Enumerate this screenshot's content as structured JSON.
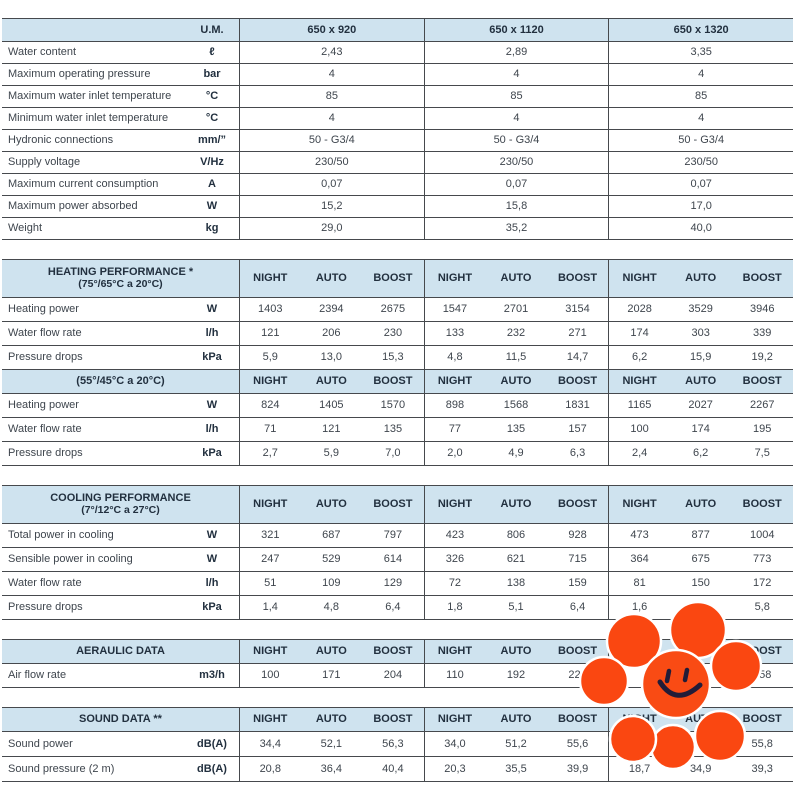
{
  "table": {
    "um_header": "U.M.",
    "models": [
      "650 x 920",
      "650 x 1120",
      "650 x 1320"
    ],
    "modes": [
      "NIGHT",
      "AUTO",
      "BOOST"
    ],
    "general_rows": [
      {
        "label": "Water content",
        "unit": "ℓ",
        "values": [
          "2,43",
          "2,89",
          "3,35"
        ]
      },
      {
        "label": "Maximum operating pressure",
        "unit": "bar",
        "values": [
          "4",
          "4",
          "4"
        ]
      },
      {
        "label": "Maximum water inlet temperature",
        "unit": "°C",
        "values": [
          "85",
          "85",
          "85"
        ]
      },
      {
        "label": "Minimum water inlet temperature",
        "unit": "°C",
        "values": [
          "4",
          "4",
          "4"
        ]
      },
      {
        "label": "Hydronic connections",
        "unit": "mm/”",
        "values": [
          "50 - G3/4",
          "50 - G3/4",
          "50 - G3/4"
        ]
      },
      {
        "label": "Supply voltage",
        "unit": "V/Hz",
        "values": [
          "230/50",
          "230/50",
          "230/50"
        ]
      },
      {
        "label": "Maximum current consumption",
        "unit": "A",
        "values": [
          "0,07",
          "0,07",
          "0,07"
        ]
      },
      {
        "label": "Maximum power absorbed",
        "unit": "W",
        "values": [
          "15,2",
          "15,8",
          "17,0"
        ]
      },
      {
        "label": "Weight",
        "unit": "kg",
        "values": [
          "29,0",
          "35,2",
          "40,0"
        ]
      }
    ],
    "sections": [
      {
        "title_line1": "HEATING PERFORMANCE *",
        "title_line2": "(75°/65°C a 20°C)",
        "attached": false,
        "rows": [
          {
            "label": "Heating power",
            "unit": "W",
            "values": [
              "1403",
              "2394",
              "2675",
              "1547",
              "2701",
              "3154",
              "2028",
              "3529",
              "3946"
            ]
          },
          {
            "label": "Water flow rate",
            "unit": "l/h",
            "values": [
              "121",
              "206",
              "230",
              "133",
              "232",
              "271",
              "174",
              "303",
              "339"
            ]
          },
          {
            "label": "Pressure drops",
            "unit": "kPa",
            "values": [
              "5,9",
              "13,0",
              "15,3",
              "4,8",
              "11,5",
              "14,7",
              "6,2",
              "15,9",
              "19,2"
            ]
          }
        ]
      },
      {
        "title_line1": "(55°/45°C a 20°C)",
        "title_line2": "",
        "attached": true,
        "rows": [
          {
            "label": "Heating power",
            "unit": "W",
            "values": [
              "824",
              "1405",
              "1570",
              "898",
              "1568",
              "1831",
              "1165",
              "2027",
              "2267"
            ]
          },
          {
            "label": "Water flow rate",
            "unit": "l/h",
            "values": [
              "71",
              "121",
              "135",
              "77",
              "135",
              "157",
              "100",
              "174",
              "195"
            ]
          },
          {
            "label": "Pressure drops",
            "unit": "kPa",
            "values": [
              "2,7",
              "5,9",
              "7,0",
              "2,0",
              "4,9",
              "6,3",
              "2,4",
              "6,2",
              "7,5"
            ]
          }
        ]
      },
      {
        "title_line1": "COOLING PERFORMANCE",
        "title_line2": "(7°/12°C a 27°C)",
        "attached": false,
        "rows": [
          {
            "label": "Total power in cooling",
            "unit": "W",
            "values": [
              "321",
              "687",
              "797",
              "423",
              "806",
              "928",
              "473",
              "877",
              "1004"
            ]
          },
          {
            "label": "Sensible power in cooling",
            "unit": "W",
            "values": [
              "247",
              "529",
              "614",
              "326",
              "621",
              "715",
              "364",
              "675",
              "773"
            ]
          },
          {
            "label": "Water flow rate",
            "unit": "l/h",
            "values": [
              "51",
              "109",
              "129",
              "72",
              "138",
              "159",
              "81",
              "150",
              "172"
            ]
          },
          {
            "label": "Pressure drops",
            "unit": "kPa",
            "values": [
              "1,4",
              "4,8",
              "6,4",
              "1,8",
              "5,1",
              "6,4",
              "1,6",
              "4,6",
              "5,8"
            ]
          }
        ]
      },
      {
        "title_line1": "AERAULIC DATA",
        "title_line2": "",
        "attached": false,
        "rows": [
          {
            "label": "Air flow rate",
            "unit": "m3/h",
            "values": [
              "100",
              "171",
              "204",
              "110",
              "192",
              "223",
              "",
              "",
              "258"
            ]
          }
        ]
      },
      {
        "title_line1": "SOUND DATA **",
        "title_line2": "",
        "attached": false,
        "rows": [
          {
            "label": "Sound power",
            "unit": "dB(A)",
            "values": [
              "34,4",
              "52,1",
              "56,3",
              "34,0",
              "51,2",
              "55,6",
              "",
              "51,3",
              "55,8"
            ]
          },
          {
            "label": "Sound pressure  (2 m)",
            "unit": "dB(A)",
            "values": [
              "20,8",
              "36,4",
              "40,4",
              "20,3",
              "35,5",
              "39,9",
              "18,7",
              "34,9",
              "39,3"
            ]
          }
        ]
      }
    ]
  },
  "flower": {
    "petal_color": "#fa4711",
    "center_color": "#f94b14",
    "face_line_color": "#221c38",
    "outline_color": "#ffffff"
  }
}
